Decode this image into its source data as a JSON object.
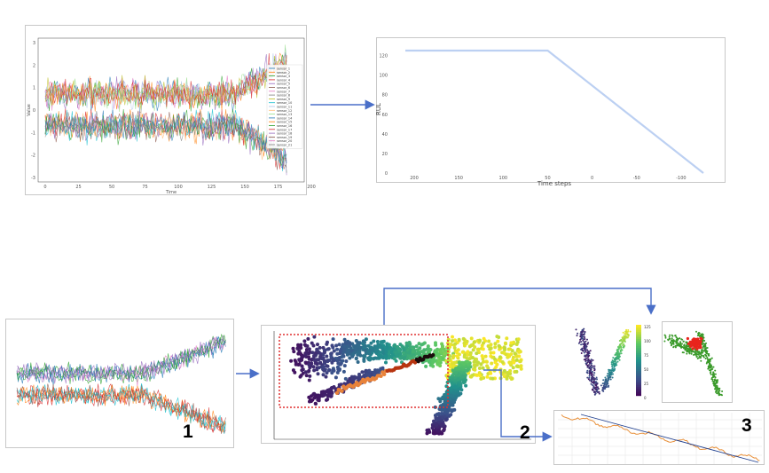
{
  "panels": {
    "sensors": {
      "x_ticks": [
        "0",
        "25",
        "50",
        "75",
        "100",
        "125",
        "150",
        "175",
        "200"
      ],
      "y_ticks": [
        "3",
        "2",
        "1",
        "0",
        "-1",
        "-2",
        "-3"
      ],
      "xlabel": "Time",
      "ylabel": "Value",
      "legend": [
        "sensor_1",
        "sensor_2",
        "sensor_3",
        "sensor_4",
        "sensor_5",
        "sensor_6",
        "sensor_7",
        "sensor_8",
        "sensor_9",
        "sensor_10",
        "sensor_11",
        "sensor_12",
        "sensor_13",
        "sensor_14",
        "sensor_15",
        "sensor_16",
        "sensor_17",
        "sensor_18",
        "sensor_19",
        "sensor_20",
        "sensor_21"
      ]
    },
    "rul": {
      "xlabel": "Time steps",
      "ylabel": "RUL",
      "x_ticks": [
        "200",
        "150",
        "100",
        "50",
        "0",
        "-50",
        "-100"
      ],
      "y_ticks": [
        "120",
        "100",
        "80",
        "60",
        "40",
        "20",
        "0"
      ]
    },
    "colorbar_ticks": [
      "125",
      "100",
      "75",
      "50",
      "25",
      "0"
    ]
  },
  "steps": [
    "1",
    "2",
    "3"
  ],
  "colors": {
    "arrow": "#4a6fc8",
    "rul_line": "#bcd0f2",
    "box": "#e03030",
    "trend": "#e8903a",
    "fit": "#1f3f8f"
  },
  "chart_data": [
    {
      "type": "line",
      "xlabel": "Time",
      "ylabel": "Value",
      "xlim": [
        0,
        200
      ],
      "ylim": [
        -3,
        3
      ],
      "x_ticks": [
        0,
        25,
        50,
        75,
        100,
        125,
        150,
        175,
        200
      ],
      "y_ticks": [
        3,
        2,
        1,
        0,
        -1,
        -2,
        -3
      ],
      "legend": [
        "sensor_1",
        "sensor_2",
        "sensor_3",
        "sensor_4",
        "sensor_5",
        "sensor_6",
        "sensor_7",
        "sensor_8",
        "sensor_9",
        "sensor_10",
        "sensor_11",
        "sensor_12",
        "sensor_13",
        "sensor_14",
        "sensor_15",
        "sensor_16",
        "sensor_17",
        "sensor_18",
        "sensor_19",
        "sensor_20",
        "sensor_21"
      ],
      "legend_placement": "right",
      "series_description": "multiple noisy sensor series, one group drifting upward and one downward near the end"
    },
    {
      "type": "line",
      "xlabel": "Time steps",
      "ylabel": "RUL",
      "x_ticks": [
        200,
        150,
        100,
        50,
        0,
        -50,
        -100
      ],
      "y_ticks": [
        120,
        100,
        80,
        60,
        40,
        20,
        0
      ],
      "x": [
        210,
        50,
        -125
      ],
      "y": [
        125,
        125,
        0
      ]
    }
  ]
}
